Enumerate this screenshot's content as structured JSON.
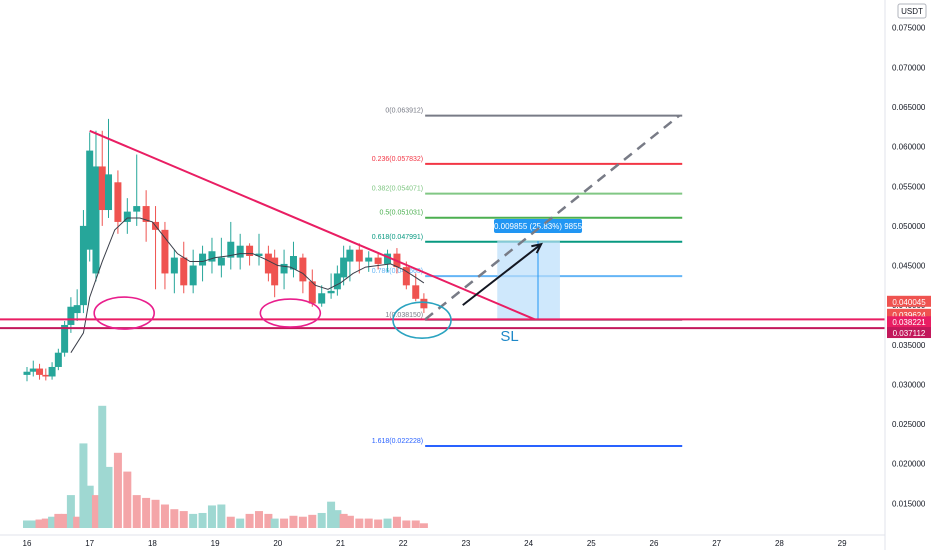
{
  "chart_data": {
    "type": "candlestick",
    "currency": "USDT",
    "x_ticks": [
      "16",
      "17",
      "18",
      "19",
      "20",
      "21",
      "22",
      "23",
      "24",
      "25",
      "26",
      "27",
      "28",
      "29"
    ],
    "y_ticks": [
      "0.075000",
      "0.070000",
      "0.065000",
      "0.060000",
      "0.055000",
      "0.050000",
      "0.045000",
      "0.040000",
      "0.035000",
      "0.030000",
      "0.025000",
      "0.020000",
      "0.015000"
    ],
    "ylim": [
      0.011,
      0.0785
    ],
    "price_badges": [
      {
        "value": "0.040045",
        "color": "#ef5350"
      },
      {
        "value": "0.039624",
        "color": "#ef5350"
      },
      {
        "value": "02:11:56",
        "color": "#ef5350"
      },
      {
        "value": "0.038221",
        "color": "#e91e63"
      },
      {
        "value": "0.037112",
        "color": "#c2185b"
      }
    ],
    "candles": [
      {
        "t": 16.0,
        "o": 0.0312,
        "h": 0.0322,
        "l": 0.0304,
        "c": 0.0316
      },
      {
        "t": 16.1,
        "o": 0.0316,
        "h": 0.033,
        "l": 0.031,
        "c": 0.032
      },
      {
        "t": 16.2,
        "o": 0.032,
        "h": 0.0326,
        "l": 0.0306,
        "c": 0.0312
      },
      {
        "t": 16.3,
        "o": 0.0312,
        "h": 0.032,
        "l": 0.0305,
        "c": 0.031
      },
      {
        "t": 16.4,
        "o": 0.031,
        "h": 0.0328,
        "l": 0.0306,
        "c": 0.0322
      },
      {
        "t": 16.5,
        "o": 0.0322,
        "h": 0.0345,
        "l": 0.0318,
        "c": 0.034
      },
      {
        "t": 16.6,
        "o": 0.034,
        "h": 0.038,
        "l": 0.0335,
        "c": 0.0375
      },
      {
        "t": 16.7,
        "o": 0.0375,
        "h": 0.041,
        "l": 0.0365,
        "c": 0.0398
      },
      {
        "t": 16.8,
        "o": 0.039,
        "h": 0.042,
        "l": 0.038,
        "c": 0.04
      },
      {
        "t": 16.9,
        "o": 0.04,
        "h": 0.052,
        "l": 0.039,
        "c": 0.05
      },
      {
        "t": 17.0,
        "o": 0.047,
        "h": 0.0618,
        "l": 0.0455,
        "c": 0.0595
      },
      {
        "t": 17.1,
        "o": 0.044,
        "h": 0.062,
        "l": 0.043,
        "c": 0.0575
      },
      {
        "t": 17.2,
        "o": 0.0575,
        "h": 0.062,
        "l": 0.05,
        "c": 0.052
      },
      {
        "t": 17.3,
        "o": 0.052,
        "h": 0.0635,
        "l": 0.051,
        "c": 0.0565
      },
      {
        "t": 17.45,
        "o": 0.0555,
        "h": 0.057,
        "l": 0.049,
        "c": 0.0505
      },
      {
        "t": 17.6,
        "o": 0.0505,
        "h": 0.0535,
        "l": 0.049,
        "c": 0.0518
      },
      {
        "t": 17.75,
        "o": 0.0518,
        "h": 0.059,
        "l": 0.05,
        "c": 0.0525
      },
      {
        "t": 17.9,
        "o": 0.0525,
        "h": 0.0545,
        "l": 0.048,
        "c": 0.0505
      },
      {
        "t": 18.05,
        "o": 0.0505,
        "h": 0.0525,
        "l": 0.042,
        "c": 0.0495
      },
      {
        "t": 18.2,
        "o": 0.0495,
        "h": 0.0505,
        "l": 0.042,
        "c": 0.044
      },
      {
        "t": 18.35,
        "o": 0.044,
        "h": 0.047,
        "l": 0.0415,
        "c": 0.046
      },
      {
        "t": 18.5,
        "o": 0.046,
        "h": 0.048,
        "l": 0.0415,
        "c": 0.0425
      },
      {
        "t": 18.65,
        "o": 0.0425,
        "h": 0.047,
        "l": 0.0415,
        "c": 0.045
      },
      {
        "t": 18.8,
        "o": 0.045,
        "h": 0.0475,
        "l": 0.043,
        "c": 0.0465
      },
      {
        "t": 18.95,
        "o": 0.0455,
        "h": 0.0485,
        "l": 0.044,
        "c": 0.0468
      },
      {
        "t": 19.1,
        "o": 0.045,
        "h": 0.0485,
        "l": 0.0435,
        "c": 0.046
      },
      {
        "t": 19.25,
        "o": 0.046,
        "h": 0.0505,
        "l": 0.0445,
        "c": 0.048
      },
      {
        "t": 19.4,
        "o": 0.046,
        "h": 0.049,
        "l": 0.0445,
        "c": 0.0475
      },
      {
        "t": 19.55,
        "o": 0.0475,
        "h": 0.0478,
        "l": 0.045,
        "c": 0.0462
      },
      {
        "t": 19.7,
        "o": 0.0462,
        "h": 0.049,
        "l": 0.045,
        "c": 0.0465
      },
      {
        "t": 19.85,
        "o": 0.0465,
        "h": 0.0475,
        "l": 0.043,
        "c": 0.044
      },
      {
        "t": 19.95,
        "o": 0.046,
        "h": 0.047,
        "l": 0.041,
        "c": 0.0425
      },
      {
        "t": 20.1,
        "o": 0.044,
        "h": 0.047,
        "l": 0.042,
        "c": 0.0452
      },
      {
        "t": 20.25,
        "o": 0.0445,
        "h": 0.048,
        "l": 0.0435,
        "c": 0.0462
      },
      {
        "t": 20.4,
        "o": 0.046,
        "h": 0.0465,
        "l": 0.0415,
        "c": 0.043
      },
      {
        "t": 20.55,
        "o": 0.043,
        "h": 0.0445,
        "l": 0.0398,
        "c": 0.0402
      },
      {
        "t": 20.7,
        "o": 0.0402,
        "h": 0.0425,
        "l": 0.0398,
        "c": 0.0415
      },
      {
        "t": 20.85,
        "o": 0.0415,
        "h": 0.044,
        "l": 0.0408,
        "c": 0.0418
      },
      {
        "t": 20.95,
        "o": 0.042,
        "h": 0.045,
        "l": 0.0412,
        "c": 0.044
      },
      {
        "t": 21.05,
        "o": 0.0435,
        "h": 0.0475,
        "l": 0.0425,
        "c": 0.046
      },
      {
        "t": 21.15,
        "o": 0.0455,
        "h": 0.0475,
        "l": 0.043,
        "c": 0.047
      },
      {
        "t": 21.3,
        "o": 0.047,
        "h": 0.0478,
        "l": 0.044,
        "c": 0.0455
      },
      {
        "t": 21.45,
        "o": 0.0455,
        "h": 0.0468,
        "l": 0.0442,
        "c": 0.046
      },
      {
        "t": 21.6,
        "o": 0.046,
        "h": 0.0466,
        "l": 0.0445,
        "c": 0.0452
      },
      {
        "t": 21.75,
        "o": 0.0452,
        "h": 0.047,
        "l": 0.0442,
        "c": 0.0465
      },
      {
        "t": 21.9,
        "o": 0.0465,
        "h": 0.0472,
        "l": 0.044,
        "c": 0.0448
      },
      {
        "t": 22.05,
        "o": 0.0448,
        "h": 0.0455,
        "l": 0.042,
        "c": 0.0425
      },
      {
        "t": 22.2,
        "o": 0.0425,
        "h": 0.044,
        "l": 0.0405,
        "c": 0.0408
      },
      {
        "t": 22.33,
        "o": 0.0408,
        "h": 0.0415,
        "l": 0.039,
        "c": 0.0396
      }
    ],
    "moving_average": [
      [
        16.7,
        0.034
      ],
      [
        16.9,
        0.0365
      ],
      [
        17.0,
        0.041
      ],
      [
        17.2,
        0.0455
      ],
      [
        17.4,
        0.0495
      ],
      [
        17.6,
        0.051
      ],
      [
        17.8,
        0.051
      ],
      [
        18.0,
        0.0505
      ],
      [
        18.2,
        0.0485
      ],
      [
        18.4,
        0.0465
      ],
      [
        18.6,
        0.0455
      ],
      [
        18.8,
        0.0455
      ],
      [
        19.0,
        0.046
      ],
      [
        19.2,
        0.0462
      ],
      [
        19.4,
        0.0465
      ],
      [
        19.6,
        0.0465
      ],
      [
        19.8,
        0.0458
      ],
      [
        20.0,
        0.045
      ],
      [
        20.2,
        0.0448
      ],
      [
        20.4,
        0.044
      ],
      [
        20.6,
        0.0425
      ],
      [
        20.8,
        0.042
      ],
      [
        21.0,
        0.0428
      ],
      [
        21.2,
        0.044
      ],
      [
        21.4,
        0.0448
      ],
      [
        21.6,
        0.045
      ],
      [
        21.8,
        0.0452
      ],
      [
        22.0,
        0.0445
      ],
      [
        22.2,
        0.0435
      ],
      [
        22.33,
        0.0428
      ]
    ],
    "volume": [
      {
        "t": 16.0,
        "v": 0.8,
        "up": true
      },
      {
        "t": 16.1,
        "v": 0.8,
        "up": true
      },
      {
        "t": 16.2,
        "v": 0.9,
        "up": false
      },
      {
        "t": 16.3,
        "v": 1.0,
        "up": false
      },
      {
        "t": 16.4,
        "v": 1.2,
        "up": true
      },
      {
        "t": 16.5,
        "v": 1.5,
        "up": false
      },
      {
        "t": 16.6,
        "v": 1.5,
        "up": false
      },
      {
        "t": 16.7,
        "v": 3.5,
        "up": true
      },
      {
        "t": 16.8,
        "v": 1.2,
        "up": false
      },
      {
        "t": 16.9,
        "v": 9.0,
        "up": true
      },
      {
        "t": 17.0,
        "v": 4.5,
        "up": true
      },
      {
        "t": 17.1,
        "v": 3.5,
        "up": false
      },
      {
        "t": 17.2,
        "v": 13.0,
        "up": true
      },
      {
        "t": 17.3,
        "v": 6.5,
        "up": true
      },
      {
        "t": 17.45,
        "v": 8.0,
        "up": false
      },
      {
        "t": 17.6,
        "v": 6.0,
        "up": false
      },
      {
        "t": 17.75,
        "v": 3.5,
        "up": false
      },
      {
        "t": 17.9,
        "v": 3.2,
        "up": false
      },
      {
        "t": 18.05,
        "v": 3.0,
        "up": false
      },
      {
        "t": 18.2,
        "v": 2.5,
        "up": false
      },
      {
        "t": 18.35,
        "v": 2.0,
        "up": false
      },
      {
        "t": 18.5,
        "v": 1.8,
        "up": false
      },
      {
        "t": 18.65,
        "v": 1.5,
        "up": true
      },
      {
        "t": 18.8,
        "v": 1.6,
        "up": true
      },
      {
        "t": 18.95,
        "v": 2.4,
        "up": true
      },
      {
        "t": 19.1,
        "v": 2.5,
        "up": true
      },
      {
        "t": 19.25,
        "v": 1.2,
        "up": false
      },
      {
        "t": 19.4,
        "v": 1.0,
        "up": true
      },
      {
        "t": 19.55,
        "v": 1.5,
        "up": false
      },
      {
        "t": 19.7,
        "v": 1.8,
        "up": false
      },
      {
        "t": 19.85,
        "v": 1.5,
        "up": false
      },
      {
        "t": 19.95,
        "v": 1.0,
        "up": true
      },
      {
        "t": 20.1,
        "v": 1.0,
        "up": false
      },
      {
        "t": 20.25,
        "v": 1.3,
        "up": false
      },
      {
        "t": 20.4,
        "v": 1.2,
        "up": false
      },
      {
        "t": 20.55,
        "v": 1.4,
        "up": false
      },
      {
        "t": 20.7,
        "v": 1.6,
        "up": true
      },
      {
        "t": 20.85,
        "v": 2.8,
        "up": true
      },
      {
        "t": 20.95,
        "v": 1.9,
        "up": true
      },
      {
        "t": 21.05,
        "v": 1.5,
        "up": false
      },
      {
        "t": 21.15,
        "v": 1.3,
        "up": false
      },
      {
        "t": 21.3,
        "v": 1.0,
        "up": false
      },
      {
        "t": 21.45,
        "v": 1.0,
        "up": false
      },
      {
        "t": 21.6,
        "v": 0.9,
        "up": false
      },
      {
        "t": 21.75,
        "v": 1.0,
        "up": true
      },
      {
        "t": 21.9,
        "v": 1.2,
        "up": false
      },
      {
        "t": 22.05,
        "v": 0.8,
        "up": false
      },
      {
        "t": 22.2,
        "v": 0.8,
        "up": false
      },
      {
        "t": 22.33,
        "v": 0.5,
        "up": false
      }
    ],
    "fib_levels": [
      {
        "label": "0(0.063912)",
        "price": 0.063912,
        "color": "#787b86"
      },
      {
        "label": "0.236(0.057832)",
        "price": 0.057832,
        "color": "#f23645"
      },
      {
        "label": "0.382(0.054071)",
        "price": 0.054071,
        "color": "#81c784"
      },
      {
        "label": "0.5(0.051031)",
        "price": 0.051031,
        "color": "#4caf50"
      },
      {
        "label": "0.618(0.047991)",
        "price": 0.047991,
        "color": "#089981"
      },
      {
        "label": "0.786(0.043663)",
        "price": 0.043663,
        "color": "#64b5f6"
      },
      {
        "label": "1(0.038150)",
        "price": 0.03815,
        "color": "#787b86"
      },
      {
        "label": "1.618(0.022228)",
        "price": 0.022228,
        "color": "#2962ff"
      }
    ],
    "fib_range_t": [
      22.35,
      26.45
    ],
    "trendline": [
      [
        17.0,
        0.062
      ],
      [
        24.1,
        0.0382
      ]
    ],
    "support_lines": [
      {
        "price": 0.0382,
        "color": "#e91e63"
      },
      {
        "price": 0.0371,
        "color": "#c2185b"
      }
    ],
    "projection": {
      "t0": 23.5,
      "t1": 24.5,
      "p0": 0.0382,
      "p1": 0.0481,
      "label": "0.009855 (25.83%) 9855"
    },
    "arrow": [
      [
        22.95,
        0.04
      ],
      [
        24.2,
        0.0477
      ]
    ],
    "dashed_path": [
      [
        22.35,
        0.0382
      ],
      [
        26.4,
        0.0639
      ]
    ],
    "annotations": {
      "sl": "SL"
    }
  }
}
